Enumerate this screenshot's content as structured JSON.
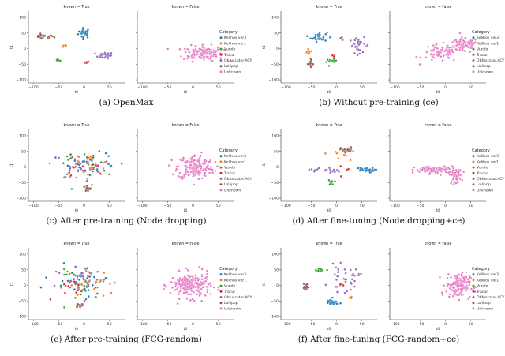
{
  "categories": [
    "Kelihos ver3",
    "Kelihos ver1",
    "Vundo",
    "Tracur",
    "Obfuscator.ACY",
    "Lollipop",
    "Unknown"
  ],
  "category_colors": [
    "#1f77b4",
    "#ff7f0e",
    "#2ca02c",
    "#d62728",
    "#9467bd",
    "#8c564b",
    "#e377c2"
  ],
  "chart_data": [
    {
      "type": "scatter",
      "caption": "(a) OpenMax",
      "legend_title": "Category",
      "legend_position": "right",
      "panel_titles": [
        "known = True",
        "known = False"
      ],
      "xlabel": "t0",
      "ylabel": "t1",
      "xlim": [
        -110,
        80
      ],
      "ylim": [
        -110,
        120
      ],
      "xticks": [
        -100,
        -50,
        0,
        50
      ],
      "yticks": [
        -100,
        -50,
        0,
        50,
        100
      ],
      "known_clusters": [
        {
          "category": "Kelihos ver3",
          "center": [
            0,
            50
          ],
          "spread": [
            6,
            8
          ],
          "count": 28
        },
        {
          "category": "Kelihos ver1",
          "center": [
            -38,
            8
          ],
          "spread": [
            3,
            2
          ],
          "count": 6
        },
        {
          "category": "Vundo",
          "center": [
            -50,
            -37
          ],
          "spread": [
            2,
            3
          ],
          "count": 6
        },
        {
          "category": "Tracur",
          "center": [
            5,
            -45
          ],
          "spread": [
            2,
            2
          ],
          "count": 5
        },
        {
          "category": "Obfuscator.ACY",
          "center": [
            40,
            -22
          ],
          "spread": [
            9,
            5
          ],
          "count": 22
        },
        {
          "category": "Lollipop",
          "center": [
            -80,
            38
          ],
          "spread": [
            10,
            4
          ],
          "count": 22
        }
      ],
      "unknown_clusters": [
        {
          "center": [
            20,
            -15
          ],
          "spread": [
            20,
            12
          ],
          "count": 130
        }
      ]
    },
    {
      "type": "scatter",
      "caption": "(b) Without pre-training (ce)",
      "legend_title": "Category",
      "legend_position": "right",
      "panel_titles": [
        "known = True",
        "known = False"
      ],
      "xlabel": "t0",
      "ylabel": "t1",
      "xlim": [
        -110,
        80
      ],
      "ylim": [
        -110,
        120
      ],
      "xticks": [
        -100,
        -50,
        0,
        50
      ],
      "yticks": [
        -100,
        -50,
        0,
        50,
        100
      ],
      "known_clusters": [
        {
          "category": "Kelihos ver3",
          "center": [
            -35,
            38
          ],
          "spread": [
            8,
            8
          ],
          "count": 30
        },
        {
          "category": "Kelihos ver1",
          "center": [
            -55,
            -10
          ],
          "spread": [
            3,
            5
          ],
          "count": 8
        },
        {
          "category": "Vundo",
          "center": [
            -10,
            -42
          ],
          "spread": [
            5,
            4
          ],
          "count": 10
        },
        {
          "category": "Tracur",
          "center": [
            -5,
            -22
          ],
          "spread": [
            3,
            3
          ],
          "count": 4
        },
        {
          "category": "Obfuscator.ACY",
          "center": [
            45,
            10
          ],
          "spread": [
            10,
            12
          ],
          "count": 28
        },
        {
          "category": "Lollipop",
          "center": [
            -52,
            -48
          ],
          "spread": [
            3,
            6
          ],
          "count": 14
        },
        {
          "category": "Lollipop",
          "center": [
            5,
            35
          ],
          "spread": [
            3,
            3
          ],
          "count": 3
        }
      ],
      "unknown_clusters": [
        {
          "center": [
            35,
            10
          ],
          "spread": [
            15,
            12
          ],
          "count": 80
        },
        {
          "center": [
            -10,
            -15
          ],
          "spread": [
            18,
            14
          ],
          "count": 60
        }
      ]
    },
    {
      "type": "scatter",
      "caption": "(c) After pre-training (Node dropping)",
      "legend_title": "Category",
      "legend_position": "right",
      "panel_titles": [
        "known = True",
        "known = False"
      ],
      "xlabel": "t0",
      "ylabel": "t1",
      "xlim": [
        -110,
        80
      ],
      "ylim": [
        -110,
        120
      ],
      "xticks": [
        -100,
        -50,
        0,
        50
      ],
      "yticks": [
        -100,
        -50,
        0,
        50,
        100
      ],
      "known_clusters": [
        {
          "category": "Kelihos ver3",
          "center": [
            15,
            15
          ],
          "spread": [
            25,
            15
          ],
          "count": 40
        },
        {
          "category": "Kelihos ver1",
          "center": [
            5,
            5
          ],
          "spread": [
            25,
            18
          ],
          "count": 25
        },
        {
          "category": "Vundo",
          "center": [
            -10,
            10
          ],
          "spread": [
            25,
            20
          ],
          "count": 15
        },
        {
          "category": "Tracur",
          "center": [
            -5,
            -5
          ],
          "spread": [
            25,
            20
          ],
          "count": 15
        },
        {
          "category": "Obfuscator.ACY",
          "center": [
            -10,
            0
          ],
          "spread": [
            25,
            20
          ],
          "count": 20
        },
        {
          "category": "Lollipop",
          "center": [
            5,
            -70
          ],
          "spread": [
            5,
            6
          ],
          "count": 14
        }
      ],
      "unknown_clusters": [
        {
          "center": [
            5,
            0
          ],
          "spread": [
            18,
            20
          ],
          "count": 170
        }
      ]
    },
    {
      "type": "scatter",
      "caption": "(d) After fine-tuning (Node dropping+ce)",
      "legend_title": "Category",
      "legend_position": "right",
      "panel_titles": [
        "known = True",
        "known = False"
      ],
      "xlabel": "t0",
      "ylabel": "t1",
      "xlim": [
        -110,
        80
      ],
      "ylim": [
        -110,
        120
      ],
      "xticks": [
        -100,
        -50,
        0,
        50
      ],
      "yticks": [
        -100,
        -50,
        0,
        50,
        100
      ],
      "known_clusters": [
        {
          "category": "Kelihos ver3",
          "center": [
            55,
            -10
          ],
          "spread": [
            10,
            4
          ],
          "count": 28
        },
        {
          "category": "Kelihos ver1",
          "center": [
            5,
            40
          ],
          "spread": [
            15,
            10
          ],
          "count": 8
        },
        {
          "category": "Vundo",
          "center": [
            -10,
            -50
          ],
          "spread": [
            3,
            4
          ],
          "count": 8
        },
        {
          "category": "Tracur",
          "center": [
            10,
            -15
          ],
          "spread": [
            10,
            10
          ],
          "count": 6
        },
        {
          "category": "Obfuscator.ACY",
          "center": [
            -25,
            -10
          ],
          "spread": [
            15,
            5
          ],
          "count": 20
        },
        {
          "category": "Lollipop",
          "center": [
            20,
            55
          ],
          "spread": [
            6,
            4
          ],
          "count": 26
        }
      ],
      "unknown_clusters": [
        {
          "center": [
            -20,
            -10
          ],
          "spread": [
            20,
            6
          ],
          "count": 90
        },
        {
          "center": [
            20,
            -30
          ],
          "spread": [
            6,
            12
          ],
          "count": 40
        }
      ]
    },
    {
      "type": "scatter",
      "caption": "(e) After pre-training (FCG-random)",
      "legend_title": "Category",
      "legend_position": "right",
      "panel_titles": [
        "known = True",
        "known = False"
      ],
      "xlabel": "t0",
      "ylabel": "t1",
      "xlim": [
        -110,
        80
      ],
      "ylim": [
        -110,
        120
      ],
      "xticks": [
        -100,
        -50,
        0,
        50
      ],
      "yticks": [
        -100,
        -50,
        0,
        50,
        100
      ],
      "known_clusters": [
        {
          "category": "Kelihos ver3",
          "center": [
            0,
            15
          ],
          "spread": [
            25,
            25
          ],
          "count": 40
        },
        {
          "category": "Kelihos ver1",
          "center": [
            10,
            5
          ],
          "spread": [
            25,
            25
          ],
          "count": 25
        },
        {
          "category": "Vundo",
          "center": [
            -5,
            0
          ],
          "spread": [
            25,
            25
          ],
          "count": 20
        },
        {
          "category": "Tracur",
          "center": [
            -10,
            -10
          ],
          "spread": [
            20,
            20
          ],
          "count": 15
        },
        {
          "category": "Obfuscator.ACY",
          "center": [
            -5,
            25
          ],
          "spread": [
            25,
            15
          ],
          "count": 25
        },
        {
          "category": "Lollipop",
          "center": [
            -10,
            -65
          ],
          "spread": [
            5,
            3
          ],
          "count": 12
        }
      ],
      "unknown_clusters": [
        {
          "center": [
            -5,
            0
          ],
          "spread": [
            20,
            20
          ],
          "count": 200
        }
      ]
    },
    {
      "type": "scatter",
      "caption": "(f) After fine-tuning (FCG-random+ce)",
      "legend_title": "Category",
      "legend_position": "right",
      "panel_titles": [
        "known = True",
        "known = False"
      ],
      "xlabel": "t0",
      "ylabel": "t1",
      "xlim": [
        -110,
        80
      ],
      "ylim": [
        -110,
        120
      ],
      "xticks": [
        -100,
        -50,
        0,
        50
      ],
      "yticks": [
        -100,
        -50,
        0,
        50,
        100
      ],
      "known_clusters": [
        {
          "category": "Kelihos ver3",
          "center": [
            -10,
            -55
          ],
          "spread": [
            6,
            6
          ],
          "count": 26
        },
        {
          "category": "Kelihos ver1",
          "center": [
            30,
            -40
          ],
          "spread": [
            4,
            3
          ],
          "count": 4
        },
        {
          "category": "Vundo",
          "center": [
            -30,
            50
          ],
          "spread": [
            5,
            4
          ],
          "count": 12
        },
        {
          "category": "Tracur",
          "center": [
            5,
            0
          ],
          "spread": [
            4,
            4
          ],
          "count": 4
        },
        {
          "category": "Obfuscator.ACY",
          "center": [
            15,
            20
          ],
          "spread": [
            15,
            20
          ],
          "count": 35
        },
        {
          "category": "Lollipop",
          "center": [
            -60,
            -5
          ],
          "spread": [
            4,
            6
          ],
          "count": 16
        }
      ],
      "unknown_clusters": [
        {
          "center": [
            25,
            0
          ],
          "spread": [
            12,
            20
          ],
          "count": 140
        }
      ]
    }
  ]
}
